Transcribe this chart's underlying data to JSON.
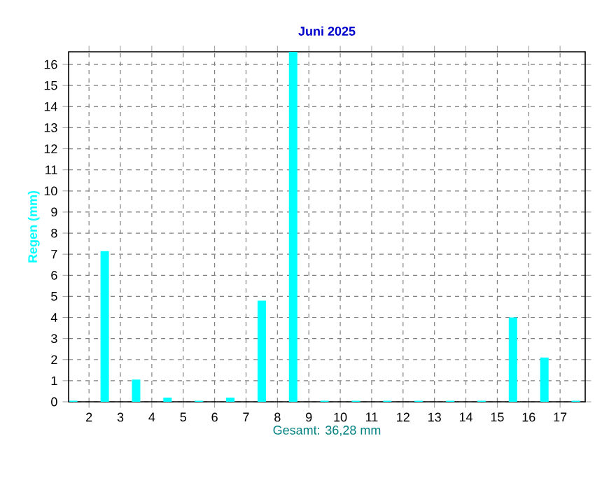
{
  "chart_data": {
    "type": "bar",
    "title": "Juni 2025",
    "xlabel": "Gesamt: 36,28 mm",
    "ylabel": "Regen  (mm)",
    "x": [
      1.5,
      2.5,
      3.5,
      4.5,
      5.5,
      6.5,
      7.5,
      8.5,
      9.5,
      10.5,
      11.5,
      12.5,
      13.5,
      14.5,
      15.5,
      16.5,
      17.5
    ],
    "values": [
      0.05,
      7.15,
      1.05,
      0.2,
      0.05,
      0.2,
      4.8,
      16.6,
      0.05,
      0.05,
      0.05,
      0.05,
      0.05,
      0.05,
      4.0,
      2.1,
      0.05
    ],
    "color": "#00ffff",
    "xlim": [
      1.35,
      17.8
    ],
    "ylim": [
      0,
      16.6
    ],
    "xticks": [
      2,
      3,
      4,
      5,
      6,
      7,
      8,
      9,
      10,
      11,
      12,
      13,
      14,
      15,
      16,
      17
    ],
    "yticks": [
      0,
      1,
      2,
      3,
      4,
      5,
      6,
      7,
      8,
      9,
      10,
      11,
      12,
      13,
      14,
      15,
      16
    ],
    "grid": true
  }
}
